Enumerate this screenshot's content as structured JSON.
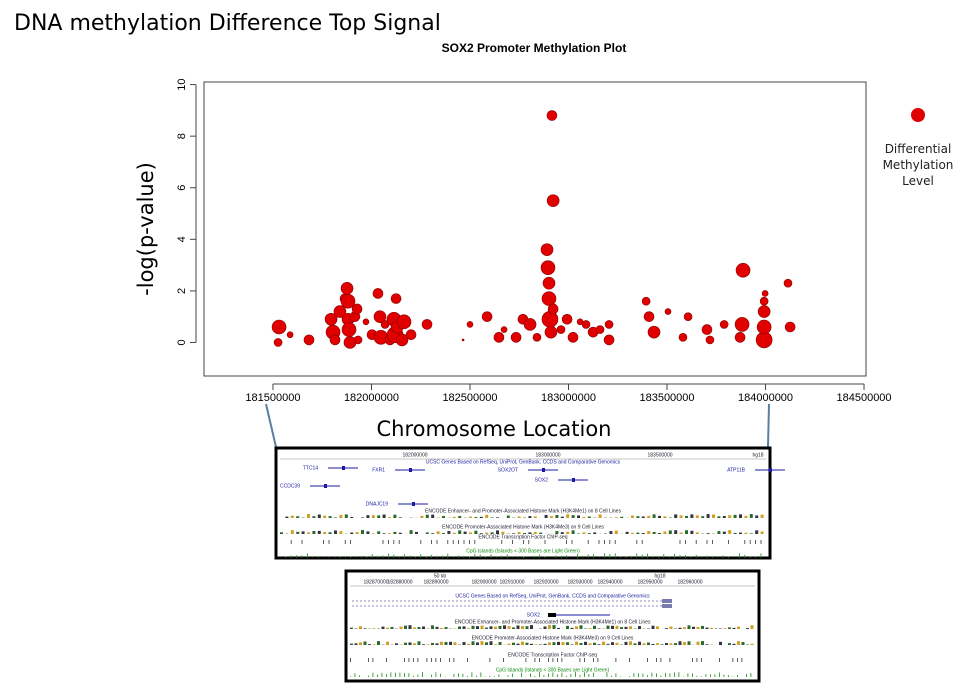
{
  "page_title": "DNA methylation Difference Top Signal",
  "chart_data": {
    "type": "bubble",
    "title": "SOX2 Promoter Methylation Plot",
    "xlabel": "Chromosome Location",
    "ylabel": "-log(p-value)",
    "xlim": [
      181150000,
      184510000
    ],
    "ylim": [
      -1.3,
      10.1
    ],
    "xticks": [
      181500000,
      182000000,
      182500000,
      183000000,
      183500000,
      184000000,
      184500000
    ],
    "yticks": [
      0,
      2,
      4,
      6,
      8,
      10
    ],
    "legend_position": "right",
    "series": [
      {
        "name": "Differential Methylation Level",
        "color": "#e00000",
        "x": [
          181531000,
          181526000,
          181587000,
          181683000,
          181795000,
          181805000,
          181815000,
          181840000,
          181866000,
          181876000,
          181881000,
          181881000,
          181886000,
          181891000,
          181916000,
          181927000,
          181932000,
          181972000,
          182003000,
          182033000,
          182043000,
          182048000,
          182069000,
          182094000,
          182114000,
          182120000,
          182125000,
          182130000,
          182155000,
          182165000,
          182201000,
          182282000,
          182465000,
          182500000,
          182587000,
          182647000,
          182673000,
          182734000,
          182769000,
          182805000,
          182840000,
          182891000,
          182896000,
          182901000,
          182901000,
          182906000,
          182911000,
          182916000,
          182922000,
          182922000,
          182962000,
          182993000,
          183023000,
          183059000,
          183089000,
          183125000,
          183160000,
          183206000,
          183206000,
          183394000,
          183409000,
          183434000,
          183505000,
          183581000,
          183607000,
          183703000,
          183718000,
          183790000,
          183871000,
          183881000,
          183886000,
          183993000,
          183993000,
          183993000,
          183993000,
          183998000,
          184114000,
          184125000
        ],
        "values": [
          0.6,
          0.0,
          0.3,
          0.1,
          0.9,
          0.4,
          0.1,
          1.2,
          1.7,
          2.1,
          1.6,
          0.9,
          0.5,
          0.0,
          1.0,
          1.3,
          0.1,
          0.8,
          0.3,
          1.9,
          1.0,
          0.2,
          0.7,
          0.1,
          0.9,
          0.3,
          1.7,
          0.6,
          0.1,
          0.8,
          0.3,
          0.7,
          0.1,
          0.7,
          1.0,
          0.2,
          0.5,
          0.2,
          0.9,
          0.7,
          0.2,
          3.6,
          2.9,
          2.3,
          1.7,
          0.9,
          0.4,
          8.8,
          5.5,
          1.3,
          0.5,
          0.9,
          0.2,
          0.8,
          0.7,
          0.4,
          0.5,
          0.1,
          0.7,
          1.6,
          1.0,
          0.4,
          1.2,
          0.2,
          1.0,
          0.5,
          0.1,
          0.7,
          0.2,
          0.7,
          2.8,
          0.1,
          0.6,
          1.2,
          1.6,
          1.9,
          2.3,
          0.6
        ],
        "sizes": [
          7,
          4,
          3,
          5,
          6,
          7,
          5,
          6,
          5,
          6,
          7,
          6,
          7,
          6,
          5,
          5,
          4,
          3,
          5,
          5,
          6,
          7,
          4,
          5,
          7,
          8,
          5,
          6,
          6,
          7,
          5,
          5,
          1,
          3,
          5,
          5,
          3,
          5,
          5,
          6,
          4,
          6,
          7,
          6,
          7,
          8,
          6,
          5,
          6,
          5,
          4,
          5,
          5,
          3,
          4,
          5,
          4,
          5,
          4,
          4,
          5,
          6,
          3,
          4,
          4,
          5,
          4,
          4,
          5,
          7,
          7,
          8,
          7,
          6,
          4,
          3,
          4,
          5
        ]
      }
    ]
  },
  "browser_panels": [
    {
      "ticks": [
        "182000000",
        "183000000",
        "183500000",
        "hg18"
      ],
      "genes": [
        "TTC14",
        "FXR1",
        "CCDC39",
        "DNAJC19",
        "SOX2OT",
        "SOX2",
        "ATP11B"
      ],
      "tracks": [
        "UCSC Genes Based on RefSeq, UniProt, GenBank, CCDS and Comparative Genomics",
        "ENCODE Enhancer- and Promoter-Associated Histone Mark (H3K4Me1) on 8 Cell Lines",
        "ENCODE Promoter-Associated Histone Mark (H3K4Me3) on 9 Cell Lines",
        "ENCODE Transcription Factor ChIP-seq",
        "CpG Islands (Islands < 300 Bases are Light Green)"
      ]
    },
    {
      "ticks": [
        "182870000",
        "182880000",
        "182890000",
        "182900000",
        "182910000",
        "182920000",
        "182930000",
        "182940000",
        "182950000",
        "182960000",
        "50 kb",
        "hg18"
      ],
      "genes": [
        "SOX2"
      ],
      "tracks": [
        "UCSC Genes Based on RefSeq, UniProt, GenBank, CCDS and Comparative Genomics",
        "ENCODE Enhancer- and Promoter-Associated Histone Mark (H3K4Me1) on 8 Cell Lines",
        "ENCODE Promoter-Associated Histone Mark (H3K4Me3) on 9 Cell Lines",
        "ENCODE Transcription Factor ChIP-seq",
        "CpG Islands (Islands < 300 Bases are Light Green)"
      ]
    }
  ]
}
